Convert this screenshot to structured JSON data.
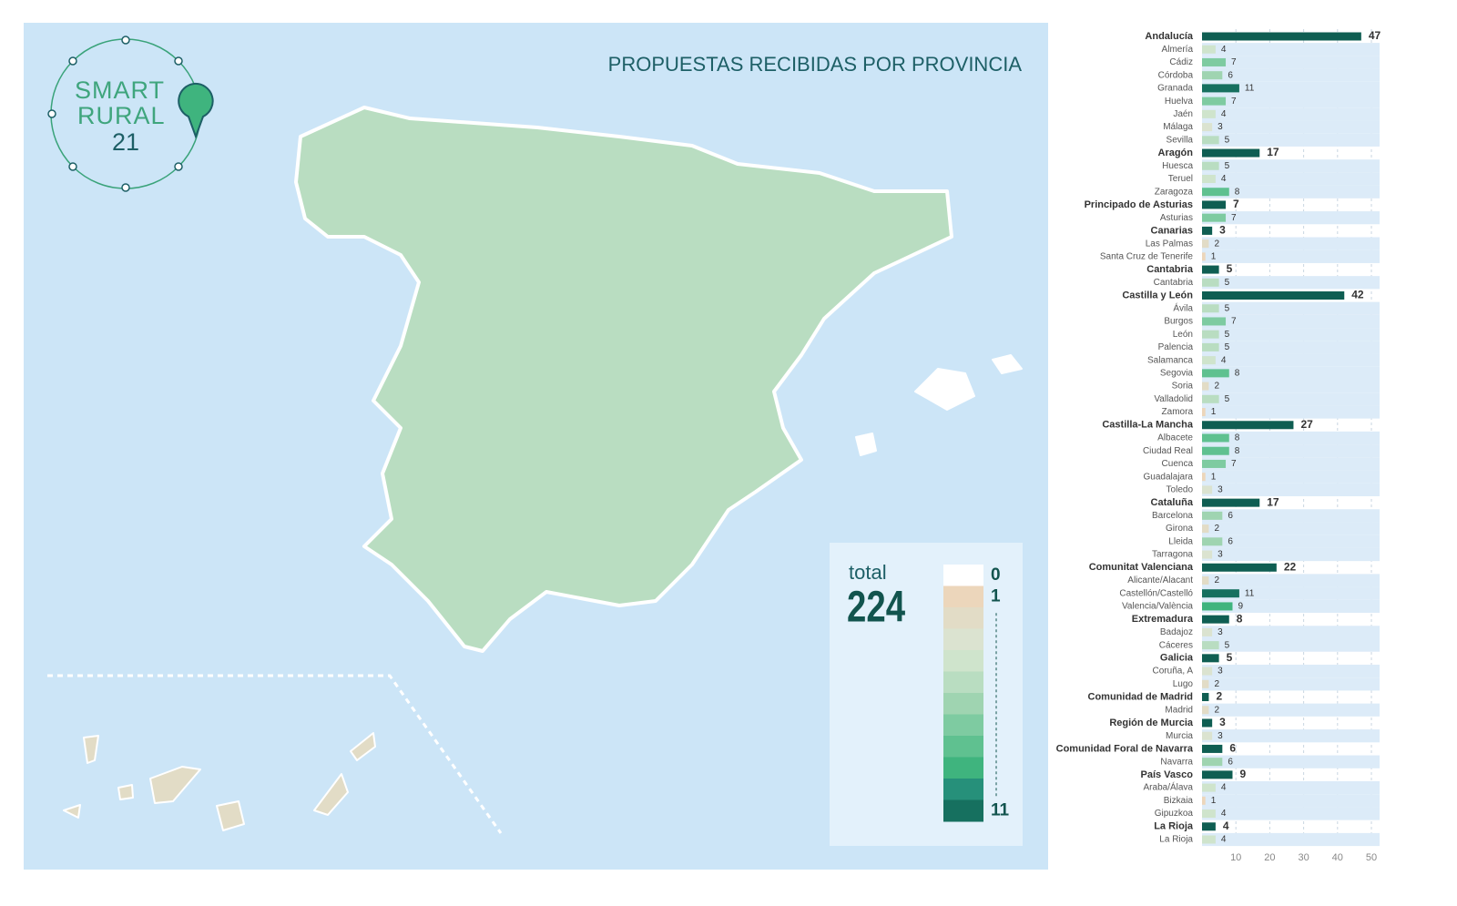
{
  "map": {
    "title": "PROPUESTAS RECIBIDAS POR PROVINCIA",
    "logo": {
      "line1": "SMART",
      "line2": "RURAL",
      "number": "21"
    },
    "legend": {
      "label": "total",
      "total": 224,
      "ticks": [
        0,
        1,
        11
      ],
      "colors": [
        "#ffffff",
        "#ecd6bb",
        "#e2dcc6",
        "#dbe3d0",
        "#cfe4cc",
        "#b9ddc1",
        "#9fd4b1",
        "#7ecba1",
        "#5fc190",
        "#3fb47e",
        "#26907a",
        "#16705f"
      ]
    }
  },
  "chart_data": {
    "type": "bar",
    "region_color": "#0f5e52",
    "xlim": [
      0,
      50
    ],
    "xticks": [
      10,
      20,
      30,
      40,
      50
    ],
    "regions": [
      {
        "name": "Andalucía",
        "value": 47,
        "provinces": [
          {
            "name": "Almería",
            "value": 4
          },
          {
            "name": "Cádiz",
            "value": 7
          },
          {
            "name": "Córdoba",
            "value": 6
          },
          {
            "name": "Granada",
            "value": 11
          },
          {
            "name": "Huelva",
            "value": 7
          },
          {
            "name": "Jaén",
            "value": 4
          },
          {
            "name": "Málaga",
            "value": 3
          },
          {
            "name": "Sevilla",
            "value": 5
          }
        ]
      },
      {
        "name": "Aragón",
        "value": 17,
        "provinces": [
          {
            "name": "Huesca",
            "value": 5
          },
          {
            "name": "Teruel",
            "value": 4
          },
          {
            "name": "Zaragoza",
            "value": 8
          }
        ]
      },
      {
        "name": "Principado de Asturias",
        "value": 7,
        "provinces": [
          {
            "name": "Asturias",
            "value": 7
          }
        ]
      },
      {
        "name": "Canarias",
        "value": 3,
        "provinces": [
          {
            "name": "Las Palmas",
            "value": 2
          },
          {
            "name": "Santa Cruz de Tenerife",
            "value": 1
          }
        ]
      },
      {
        "name": "Cantabria",
        "value": 5,
        "provinces": [
          {
            "name": "Cantabria",
            "value": 5
          }
        ]
      },
      {
        "name": "Castilla y León",
        "value": 42,
        "provinces": [
          {
            "name": "Ávila",
            "value": 5
          },
          {
            "name": "Burgos",
            "value": 7
          },
          {
            "name": "León",
            "value": 5
          },
          {
            "name": "Palencia",
            "value": 5
          },
          {
            "name": "Salamanca",
            "value": 4
          },
          {
            "name": "Segovia",
            "value": 8
          },
          {
            "name": "Soria",
            "value": 2
          },
          {
            "name": "Valladolid",
            "value": 5
          },
          {
            "name": "Zamora",
            "value": 1
          }
        ]
      },
      {
        "name": "Castilla-La Mancha",
        "value": 27,
        "provinces": [
          {
            "name": "Albacete",
            "value": 8
          },
          {
            "name": "Ciudad Real",
            "value": 8
          },
          {
            "name": "Cuenca",
            "value": 7
          },
          {
            "name": "Guadalajara",
            "value": 1
          },
          {
            "name": "Toledo",
            "value": 3
          }
        ]
      },
      {
        "name": "Cataluña",
        "value": 17,
        "provinces": [
          {
            "name": "Barcelona",
            "value": 6
          },
          {
            "name": "Girona",
            "value": 2
          },
          {
            "name": "Lleida",
            "value": 6
          },
          {
            "name": "Tarragona",
            "value": 3
          }
        ]
      },
      {
        "name": "Comunitat Valenciana",
        "value": 22,
        "provinces": [
          {
            "name": "Alicante/Alacant",
            "value": 2
          },
          {
            "name": "Castellón/Castelló",
            "value": 11
          },
          {
            "name": "Valencia/València",
            "value": 9
          }
        ]
      },
      {
        "name": "Extremadura",
        "value": 8,
        "provinces": [
          {
            "name": "Badajoz",
            "value": 3
          },
          {
            "name": "Cáceres",
            "value": 5
          }
        ]
      },
      {
        "name": "Galicia",
        "value": 5,
        "provinces": [
          {
            "name": "Coruña, A",
            "value": 3
          },
          {
            "name": "Lugo",
            "value": 2
          }
        ]
      },
      {
        "name": "Comunidad de Madrid",
        "value": 2,
        "provinces": [
          {
            "name": "Madrid",
            "value": 2
          }
        ]
      },
      {
        "name": "Región de Murcia",
        "value": 3,
        "provinces": [
          {
            "name": "Murcia",
            "value": 3
          }
        ]
      },
      {
        "name": "Comunidad Foral de Navarra",
        "value": 6,
        "provinces": [
          {
            "name": "Navarra",
            "value": 6
          }
        ]
      },
      {
        "name": "País Vasco",
        "value": 9,
        "provinces": [
          {
            "name": "Araba/Álava",
            "value": 4
          },
          {
            "name": "Bizkaia",
            "value": 1
          },
          {
            "name": "Gipuzkoa",
            "value": 4
          }
        ]
      },
      {
        "name": "La Rioja",
        "value": 4,
        "provinces": [
          {
            "name": "La Rioja",
            "value": 4
          }
        ]
      }
    ]
  }
}
